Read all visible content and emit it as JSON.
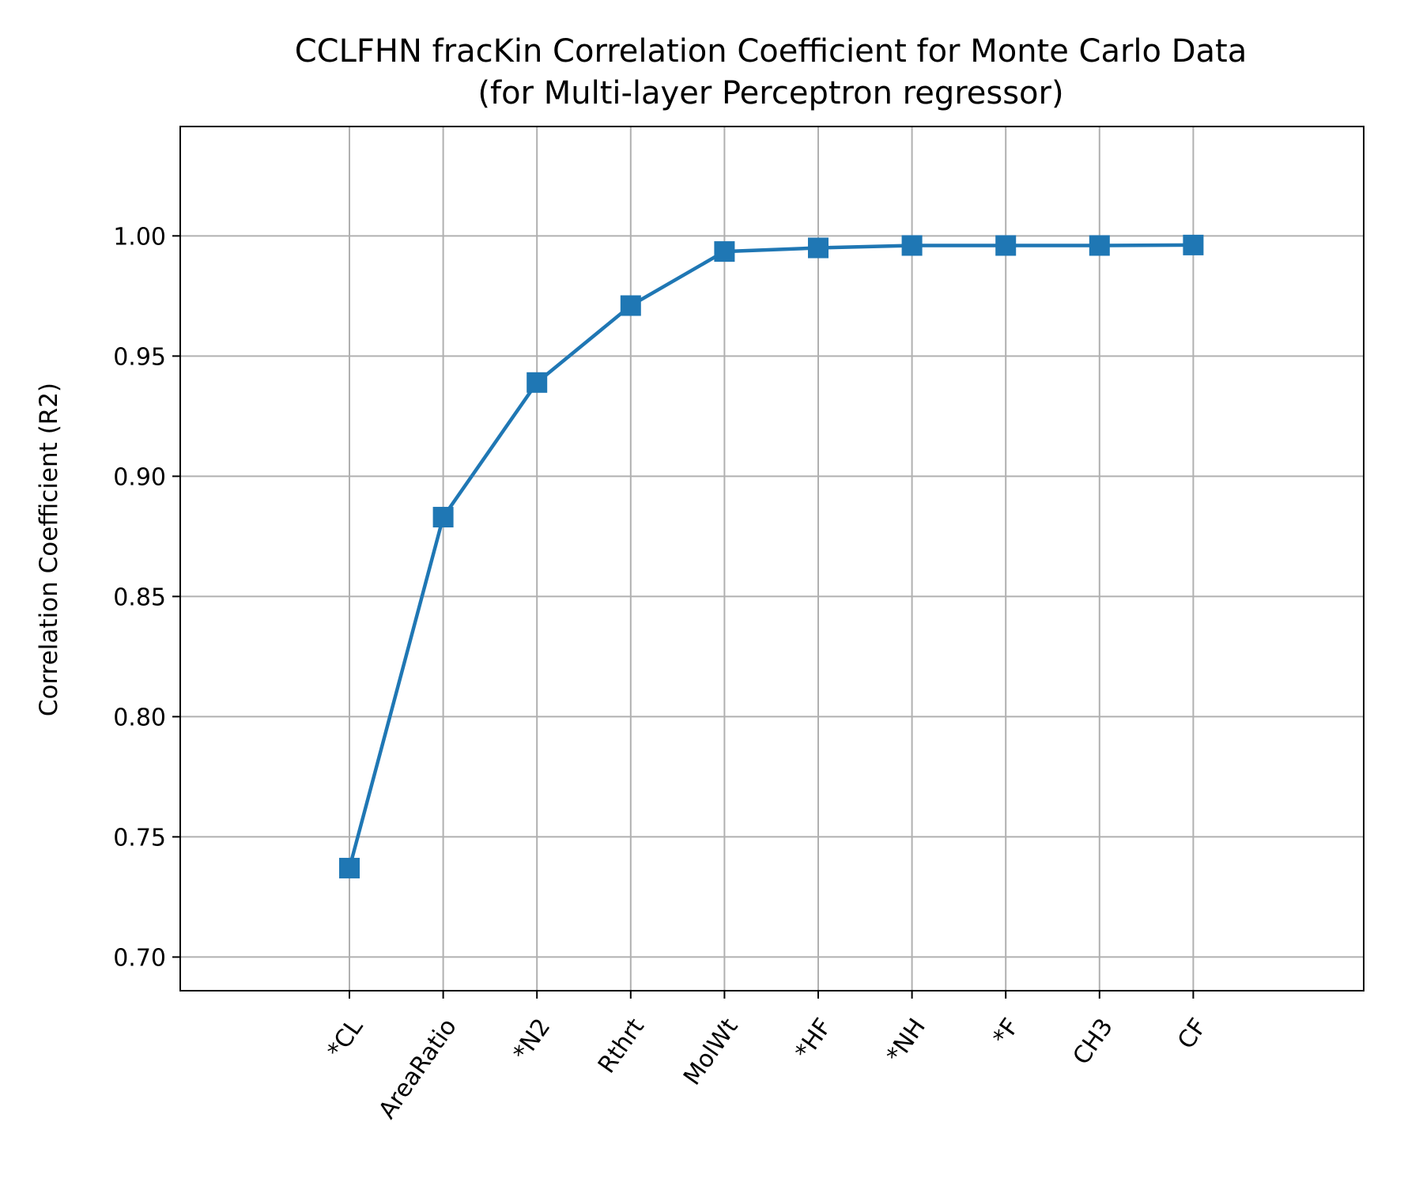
{
  "chart_data": {
    "type": "line",
    "title": "CCLFHN fracKin Correlation Coefficient for Monte Carlo Data",
    "subtitle": "(for Multi-layer Perceptron regressor)",
    "xlabel": "",
    "ylabel": "Correlation Coefficient (R2)",
    "categories": [
      "*CL",
      "AreaRatio",
      "*N2",
      "Rthrt",
      "MolWt",
      "*HF",
      "*NH",
      "*F",
      "CH3",
      "CF"
    ],
    "series": [
      {
        "values": [
          0.737,
          0.883,
          0.939,
          0.971,
          0.9935,
          0.995,
          0.996,
          0.996,
          0.996,
          0.9962
        ]
      }
    ],
    "ylim": [
      0.686,
      1.0455
    ],
    "yticks": [
      0.7,
      0.75,
      0.8,
      0.85,
      0.9,
      0.95,
      1.0
    ],
    "ytick_labels": [
      "0.70",
      "0.75",
      "0.80",
      "0.85",
      "0.90",
      "0.95",
      "1.00"
    ],
    "grid": true,
    "marker": "square",
    "line_color": "#1f77b4",
    "grid_color": "#b0b0b0"
  }
}
